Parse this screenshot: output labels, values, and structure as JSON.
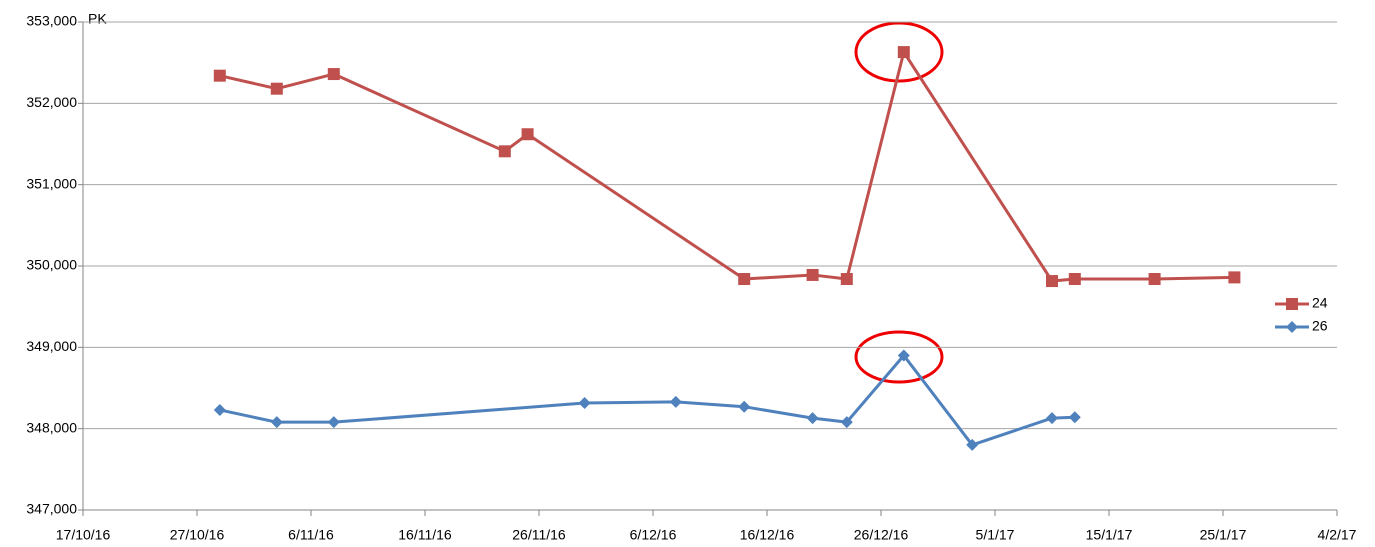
{
  "chart_data": {
    "type": "line",
    "y_label": "PK",
    "xlim": [
      "2016-10-17",
      "2017-02-04"
    ],
    "xticks": [
      {
        "value": "2016-10-17",
        "label": "17/10/16"
      },
      {
        "value": "2016-10-27",
        "label": "27/10/16"
      },
      {
        "value": "2016-11-06",
        "label": "6/11/16"
      },
      {
        "value": "2016-11-16",
        "label": "16/11/16"
      },
      {
        "value": "2016-11-26",
        "label": "26/11/16"
      },
      {
        "value": "2016-12-06",
        "label": "6/12/16"
      },
      {
        "value": "2016-12-16",
        "label": "16/12/16"
      },
      {
        "value": "2016-12-26",
        "label": "26/12/16"
      },
      {
        "value": "2017-01-05",
        "label": "5/1/17"
      },
      {
        "value": "2017-01-15",
        "label": "15/1/17"
      },
      {
        "value": "2017-01-25",
        "label": "25/1/17"
      },
      {
        "value": "2017-02-04",
        "label": "4/2/17"
      }
    ],
    "ylim": [
      347000,
      353000
    ],
    "yticks": [
      {
        "value": 347000,
        "label": "347,000"
      },
      {
        "value": 348000,
        "label": "348,000"
      },
      {
        "value": 349000,
        "label": "349,000"
      },
      {
        "value": 350000,
        "label": "350,000"
      },
      {
        "value": 351000,
        "label": "351,000"
      },
      {
        "value": 352000,
        "label": "352,000"
      },
      {
        "value": 353000,
        "label": "353,000"
      }
    ],
    "grid": true,
    "legend": "right",
    "series": [
      {
        "name": "24",
        "color": "#c0504d",
        "marker": "square",
        "x": [
          "2016-10-29",
          "2016-11-03",
          "2016-11-08",
          "2016-11-23",
          "2016-11-25",
          "2016-12-14",
          "2016-12-20",
          "2016-12-23",
          "2016-12-28",
          "2017-01-10",
          "2017-01-12",
          "2017-01-19",
          "2017-01-26"
        ],
        "values": [
          352340,
          352180,
          352360,
          351410,
          351620,
          349840,
          349890,
          349840,
          352630,
          349815,
          349840,
          349840,
          349860
        ]
      },
      {
        "name": "26",
        "color": "#4f81bd",
        "marker": "diamond",
        "x": [
          "2016-10-29",
          "2016-11-03",
          "2016-11-08",
          "2016-11-30",
          "2016-12-08",
          "2016-12-14",
          "2016-12-20",
          "2016-12-23",
          "2016-12-28",
          "2017-01-03",
          "2017-01-10",
          "2017-01-12"
        ],
        "values": [
          348230,
          348080,
          348080,
          348315,
          348330,
          348270,
          348130,
          348080,
          348900,
          347800,
          348130,
          348140
        ]
      }
    ]
  }
}
